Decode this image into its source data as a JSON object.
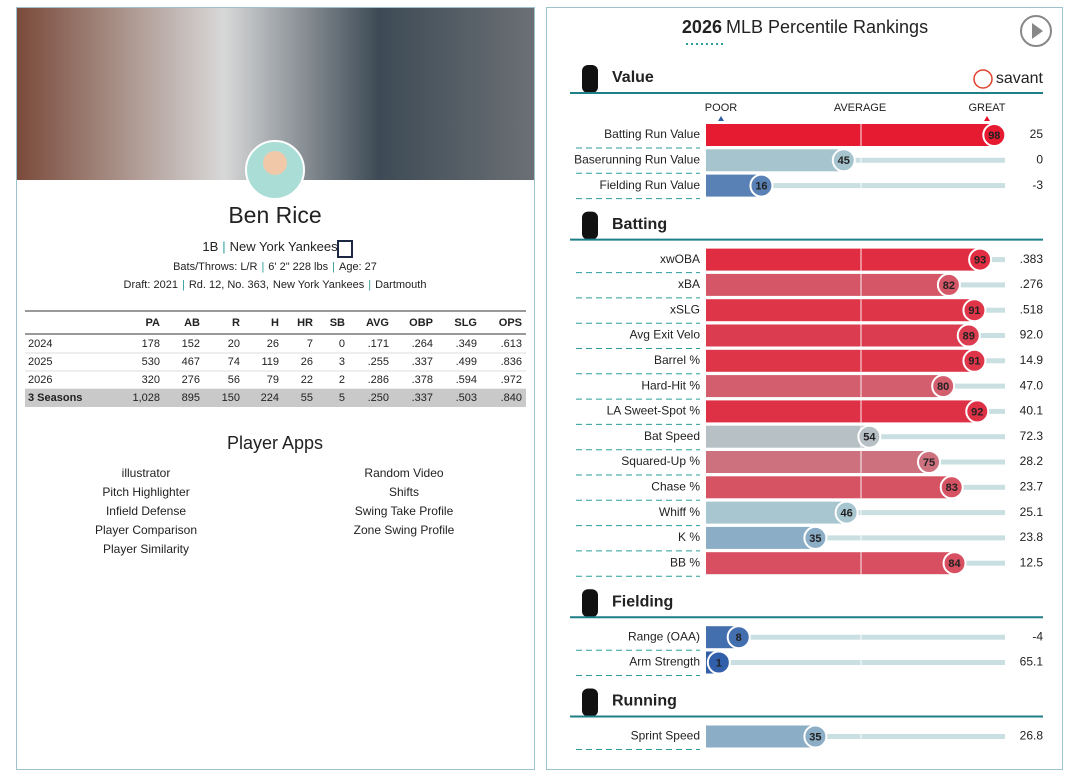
{
  "player": {
    "name": "Ben Rice",
    "separator": "|",
    "position": "1B",
    "team": "New York Yankees",
    "bats_throws": "Bats/Throws: L/R",
    "height_weight": "6' 2\" 228 lbs",
    "age": "Age: 27",
    "draft": "Draft: 2021",
    "pick": "Rd. 12, No. 363,",
    "draft_team": "New York Yankees",
    "school": "Dartmouth"
  },
  "stats_table": {
    "columns": [
      "PA",
      "AB",
      "R",
      "H",
      "HR",
      "SB",
      "AVG",
      "OBP",
      "SLG",
      "OPS"
    ],
    "rows": [
      [
        "2024",
        "178",
        "152",
        "20",
        "26",
        "7",
        "0",
        ".171",
        ".264",
        ".349",
        ".613"
      ],
      [
        "2025",
        "530",
        "467",
        "74",
        "119",
        "26",
        "3",
        ".255",
        ".337",
        ".499",
        ".836"
      ],
      [
        "2026",
        "320",
        "276",
        "56",
        "79",
        "22",
        "2",
        ".286",
        ".378",
        ".594",
        ".972"
      ],
      [
        "3 Seasons",
        "1,028",
        "895",
        "150",
        "224",
        "55",
        "5",
        ".250",
        ".337",
        ".503",
        ".840"
      ]
    ]
  },
  "apps": {
    "title": "Player Apps",
    "left": [
      "illustrator",
      "Pitch Highlighter",
      "Infield Defense",
      "Player Comparison",
      "Player Similarity"
    ],
    "right": [
      "Random Video",
      "Shifts",
      "Swing Take Profile",
      "Zone Swing Profile"
    ]
  },
  "rankings": {
    "year": "2026",
    "title": "MLB Percentile Rankings",
    "brand": "savant",
    "scale": [
      "POOR",
      "AVERAGE",
      "GREAT"
    ],
    "sections": [
      {
        "title": "Value",
        "metrics": [
          {
            "label": "Batting Run Value",
            "percentile": 98,
            "value": "25"
          },
          {
            "label": "Baserunning Run Value",
            "percentile": 45,
            "value": "0"
          },
          {
            "label": "Fielding Run Value",
            "percentile": 16,
            "value": "-3"
          }
        ]
      },
      {
        "title": "Batting",
        "metrics": [
          {
            "label": "xwOBA",
            "percentile": 93,
            "value": ".383"
          },
          {
            "label": "xBA",
            "percentile": 82,
            "value": ".276"
          },
          {
            "label": "xSLG",
            "percentile": 91,
            "value": ".518"
          },
          {
            "label": "Avg Exit Velo",
            "percentile": 89,
            "value": "92.0"
          },
          {
            "label": "Barrel %",
            "percentile": 91,
            "value": "14.9"
          },
          {
            "label": "Hard-Hit %",
            "percentile": 80,
            "value": "47.0"
          },
          {
            "label": "LA Sweet-Spot %",
            "percentile": 92,
            "value": "40.1"
          },
          {
            "label": "Bat Speed",
            "percentile": 54,
            "value": "72.3"
          },
          {
            "label": "Squared-Up %",
            "percentile": 75,
            "value": "28.2"
          },
          {
            "label": "Chase %",
            "percentile": 83,
            "value": "23.7"
          },
          {
            "label": "Whiff %",
            "percentile": 46,
            "value": "25.1"
          },
          {
            "label": "K %",
            "percentile": 35,
            "value": "23.8"
          },
          {
            "label": "BB %",
            "percentile": 84,
            "value": "12.5"
          }
        ]
      },
      {
        "title": "Fielding",
        "metrics": [
          {
            "label": "Range (OAA)",
            "percentile": 8,
            "value": "-4"
          },
          {
            "label": "Arm Strength",
            "percentile": 1,
            "value": "65.1"
          }
        ]
      },
      {
        "title": "Running",
        "metrics": [
          {
            "label": "Sprint Speed",
            "percentile": 35,
            "value": "26.8"
          }
        ]
      }
    ]
  }
}
